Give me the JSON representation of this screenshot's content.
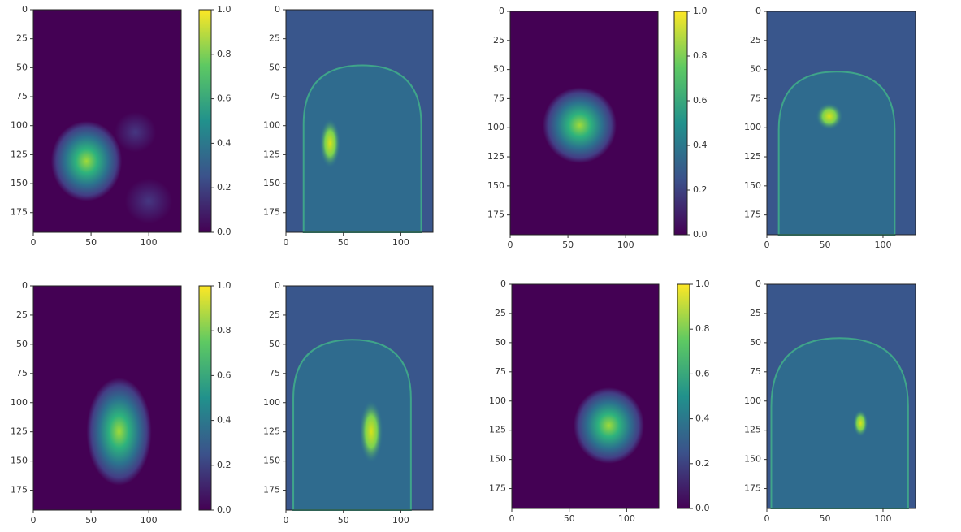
{
  "chart_data": [
    {
      "type": "heatmap",
      "colormap": "viridis",
      "xlim": [
        0,
        128
      ],
      "ylim": [
        192,
        0
      ],
      "xticks": [
        0,
        50,
        100
      ],
      "yticks": [
        0,
        25,
        50,
        75,
        100,
        125,
        150,
        175
      ],
      "colorbar": {
        "lim": [
          0,
          1
        ],
        "ticks": [
          {
            "value": 0,
            "label": "0.0"
          },
          {
            "value": 0.2,
            "label": "0.2"
          },
          {
            "value": 0.4,
            "label": "0.4"
          },
          {
            "value": 0.6,
            "label": "0.6"
          },
          {
            "value": 0.8,
            "label": "0.8"
          },
          {
            "value": 1,
            "label": "1.0"
          }
        ]
      }
    },
    {
      "type": "image",
      "colormap": "viridis",
      "xlim": [
        0,
        128
      ],
      "ylim": [
        192,
        0
      ],
      "xticks": [
        0,
        50,
        100
      ],
      "yticks": [
        0,
        25,
        50,
        75,
        100,
        125,
        150,
        175
      ]
    },
    {
      "type": "heatmap",
      "colormap": "viridis",
      "xlim": [
        0,
        128
      ],
      "ylim": [
        192,
        0
      ],
      "xticks": [
        0,
        50,
        100
      ],
      "yticks": [
        0,
        25,
        50,
        75,
        100,
        125,
        150,
        175
      ],
      "colorbar": {
        "lim": [
          0,
          1
        ],
        "ticks": [
          {
            "value": 0,
            "label": "0.0"
          },
          {
            "value": 0.2,
            "label": "0.2"
          },
          {
            "value": 0.4,
            "label": "0.4"
          },
          {
            "value": 0.6,
            "label": "0.6"
          },
          {
            "value": 0.8,
            "label": "0.8"
          },
          {
            "value": 1,
            "label": "1.0"
          }
        ]
      }
    },
    {
      "type": "image",
      "colormap": "viridis",
      "xlim": [
        0,
        128
      ],
      "ylim": [
        192,
        0
      ],
      "xticks": [
        0,
        50,
        100
      ],
      "yticks": [
        0,
        25,
        50,
        75,
        100,
        125,
        150,
        175
      ]
    },
    {
      "type": "heatmap",
      "colormap": "viridis",
      "xlim": [
        0,
        128
      ],
      "ylim": [
        192,
        0
      ],
      "xticks": [
        0,
        50,
        100
      ],
      "yticks": [
        0,
        25,
        50,
        75,
        100,
        125,
        150,
        175
      ],
      "colorbar": {
        "lim": [
          0,
          1
        ],
        "ticks": [
          {
            "value": 0,
            "label": "0.0"
          },
          {
            "value": 0.2,
            "label": "0.2"
          },
          {
            "value": 0.4,
            "label": "0.4"
          },
          {
            "value": 0.6,
            "label": "0.6"
          },
          {
            "value": 0.8,
            "label": "0.8"
          },
          {
            "value": 1,
            "label": "1.0"
          }
        ]
      }
    },
    {
      "type": "image",
      "colormap": "viridis",
      "xlim": [
        0,
        128
      ],
      "ylim": [
        192,
        0
      ],
      "xticks": [
        0,
        50,
        100
      ],
      "yticks": [
        0,
        25,
        50,
        75,
        100,
        125,
        150,
        175
      ]
    },
    {
      "type": "heatmap",
      "colormap": "viridis",
      "xlim": [
        0,
        128
      ],
      "ylim": [
        192,
        0
      ],
      "xticks": [
        0,
        50,
        100
      ],
      "yticks": [
        0,
        25,
        50,
        75,
        100,
        125,
        150,
        175
      ],
      "colorbar": {
        "lim": [
          0,
          1
        ],
        "ticks": [
          {
            "value": 0,
            "label": "0.0"
          },
          {
            "value": 0.2,
            "label": "0.2"
          },
          {
            "value": 0.4,
            "label": "0.4"
          },
          {
            "value": 0.6,
            "label": "0.6"
          },
          {
            "value": 0.8,
            "label": "0.8"
          },
          {
            "value": 1,
            "label": "1.0"
          }
        ]
      }
    },
    {
      "type": "image",
      "colormap": "viridis",
      "xlim": [
        0,
        128
      ],
      "ylim": [
        192,
        0
      ],
      "xticks": [
        0,
        50,
        100
      ],
      "yticks": [
        0,
        25,
        50,
        75,
        100,
        125,
        150,
        175
      ]
    }
  ]
}
